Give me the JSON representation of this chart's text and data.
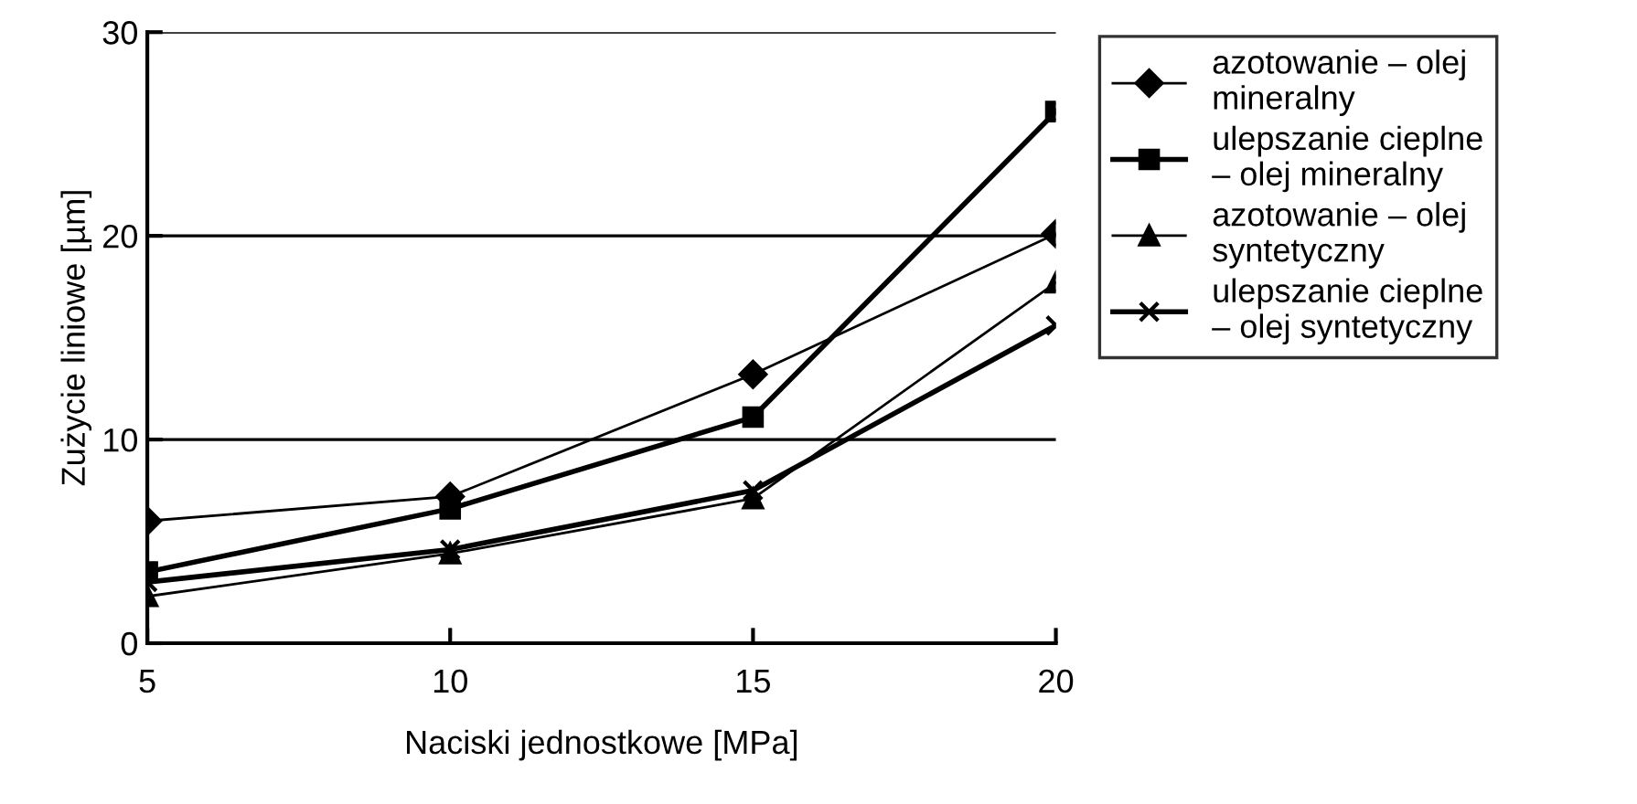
{
  "chart_data": {
    "type": "line",
    "xlabel": "Naciski jednostkowe [MPa]",
    "ylabel": "Zużycie liniowe [µm]",
    "x": [
      5,
      10,
      15,
      20
    ],
    "xlim": [
      5,
      20
    ],
    "xticks": [
      5,
      10,
      15,
      20
    ],
    "ylim": [
      0,
      30
    ],
    "yticks": [
      0,
      10,
      20,
      30
    ],
    "grid": "y",
    "legend": "right",
    "series": [
      {
        "name": "azotowanie – olej\nmineralny",
        "color": "#000000",
        "marker": "diamond",
        "values": [
          6.0,
          7.2,
          13.2,
          20.1
        ]
      },
      {
        "name": "ulepszanie cieplne\n– olej mineralny",
        "color": "#000000",
        "marker": "square",
        "values": [
          3.5,
          6.6,
          11.1,
          26.1
        ]
      },
      {
        "name": "azotowanie – olej\nsyntetyczny",
        "color": "#000000",
        "marker": "triangle",
        "values": [
          2.3,
          4.4,
          7.1,
          17.7
        ]
      },
      {
        "name": "ulepszanie cieplne\n– olej syntetyczny",
        "color": "#000000",
        "marker": "cross",
        "values": [
          3.0,
          4.6,
          7.5,
          15.6
        ]
      }
    ]
  }
}
